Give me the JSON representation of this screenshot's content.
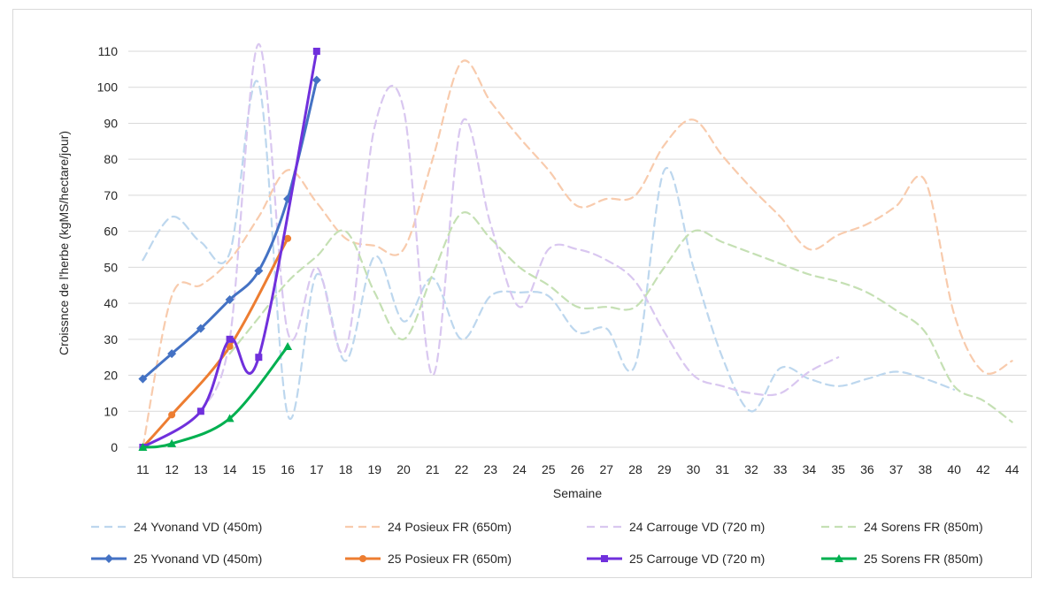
{
  "chart_data": {
    "type": "line",
    "title": "",
    "xlabel": "Semaine",
    "ylabel": "Croissnce de l'herbe (kgMS/hectare/jour)",
    "ylim": [
      0,
      110
    ],
    "yticks": [
      0,
      10,
      20,
      30,
      40,
      50,
      60,
      70,
      80,
      90,
      100,
      110
    ],
    "grid": true,
    "legend_position": "bottom",
    "categories": [
      "11",
      "12",
      "13",
      "14",
      "15",
      "16",
      "17",
      "18",
      "19",
      "20",
      "21",
      "22",
      "23",
      "24",
      "25",
      "26",
      "27",
      "28",
      "29",
      "30",
      "31",
      "32",
      "33",
      "34",
      "35",
      "36",
      "37",
      "38",
      "40",
      "42",
      "44"
    ],
    "series": [
      {
        "name": "24 Yvonand VD (450m)",
        "color": "#bdd7ee",
        "dashed": true,
        "marker": "none",
        "values": [
          52,
          64,
          57,
          54,
          101,
          9,
          48,
          24,
          53,
          35,
          47,
          30,
          42,
          43,
          42,
          32,
          33,
          23,
          77,
          50,
          25,
          10,
          22,
          19,
          17,
          19,
          21,
          19,
          16,
          null,
          null
        ]
      },
      {
        "name": "24 Posieux FR (650m)",
        "color": "#f8cbad",
        "dashed": true,
        "marker": "none",
        "values": [
          0,
          42,
          45,
          52,
          64,
          77,
          68,
          58,
          56,
          55,
          80,
          107,
          96,
          86,
          77,
          67,
          69,
          70,
          84,
          91,
          81,
          72,
          64,
          55,
          59,
          62,
          67,
          74,
          37,
          21,
          24
        ]
      },
      {
        "name": "24 Carrouge VD (720 m)",
        "color": "#d9c7f0",
        "dashed": true,
        "marker": "none",
        "values": [
          null,
          null,
          10,
          30,
          112,
          32,
          50,
          27,
          89,
          94,
          20,
          90,
          62,
          39,
          55,
          55,
          52,
          46,
          32,
          20,
          17,
          15,
          15,
          21,
          25,
          null,
          null,
          null,
          null,
          null,
          null
        ]
      },
      {
        "name": "24 Sorens FR (850m)",
        "color": "#c5e0b4",
        "dashed": true,
        "marker": "none",
        "values": [
          null,
          null,
          null,
          26,
          36,
          46,
          53,
          60,
          43,
          30,
          48,
          65,
          58,
          50,
          45,
          39,
          39,
          39,
          50,
          60,
          57,
          54,
          51,
          48,
          46,
          43,
          38,
          32,
          17,
          13,
          7
        ]
      },
      {
        "name": "25 Yvonand VD (450m)",
        "color": "#4472c4",
        "dashed": false,
        "marker": "diamond",
        "values": [
          19,
          26,
          33,
          41,
          49,
          69,
          102,
          null,
          null,
          null,
          null,
          null,
          null,
          null,
          null,
          null,
          null,
          null,
          null,
          null,
          null,
          null,
          null,
          null,
          null,
          null,
          null,
          null,
          null,
          null,
          null
        ]
      },
      {
        "name": "25 Posieux FR (650m)",
        "color": "#ed7d31",
        "dashed": false,
        "marker": "circle",
        "values": [
          0,
          9,
          null,
          28,
          null,
          58,
          null,
          null,
          null,
          null,
          null,
          null,
          null,
          null,
          null,
          null,
          null,
          null,
          null,
          null,
          null,
          null,
          null,
          null,
          null,
          null,
          null,
          null,
          null,
          null,
          null
        ]
      },
      {
        "name": "25 Carrouge VD (720 m)",
        "color": "#7030dc",
        "dashed": false,
        "marker": "square",
        "values": [
          0,
          null,
          10,
          30,
          25,
          null,
          110,
          null,
          null,
          null,
          null,
          null,
          null,
          null,
          null,
          null,
          null,
          null,
          null,
          null,
          null,
          null,
          null,
          null,
          null,
          null,
          null,
          null,
          null,
          null,
          null
        ]
      },
      {
        "name": "25 Sorens FR (850m)",
        "color": "#00b050",
        "dashed": false,
        "marker": "triangle",
        "values": [
          0,
          1,
          null,
          8,
          null,
          28,
          null,
          null,
          null,
          null,
          null,
          null,
          null,
          null,
          null,
          null,
          null,
          null,
          null,
          null,
          null,
          null,
          null,
          null,
          null,
          null,
          null,
          null,
          null,
          null,
          null
        ]
      }
    ]
  }
}
